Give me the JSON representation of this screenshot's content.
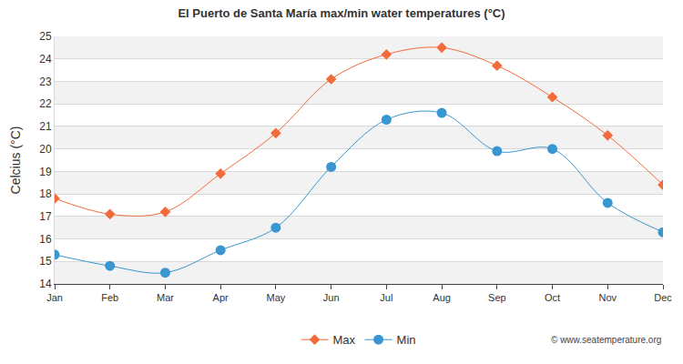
{
  "chart_data": {
    "type": "line",
    "title": "El Puerto de Santa María max/min water temperatures (°C)",
    "y_label": "Celcius (°C)",
    "categories": [
      "Jan",
      "Feb",
      "Mar",
      "Apr",
      "May",
      "Jun",
      "Jul",
      "Aug",
      "Sep",
      "Oct",
      "Nov",
      "Dec"
    ],
    "series": [
      {
        "name": "Max",
        "color": "#f26b3a",
        "marker": "diamond",
        "line_style": "spline",
        "values": [
          17.8,
          17.1,
          17.2,
          18.9,
          20.7,
          23.1,
          24.2,
          24.5,
          23.7,
          22.3,
          20.6,
          18.4
        ]
      },
      {
        "name": "Min",
        "color": "#3a96d0",
        "marker": "circle",
        "line_style": "spline",
        "values": [
          15.3,
          14.8,
          14.5,
          15.5,
          16.5,
          19.2,
          21.3,
          21.6,
          19.9,
          20.0,
          17.6,
          16.3
        ]
      }
    ],
    "ylim": [
      14,
      25
    ],
    "yticks": [
      14,
      15,
      16,
      17,
      18,
      19,
      20,
      21,
      22,
      23,
      24,
      25
    ],
    "grid": true,
    "legend": "bottom",
    "annotations": [
      {
        "text": "© www.seatemperature.org"
      }
    ]
  }
}
